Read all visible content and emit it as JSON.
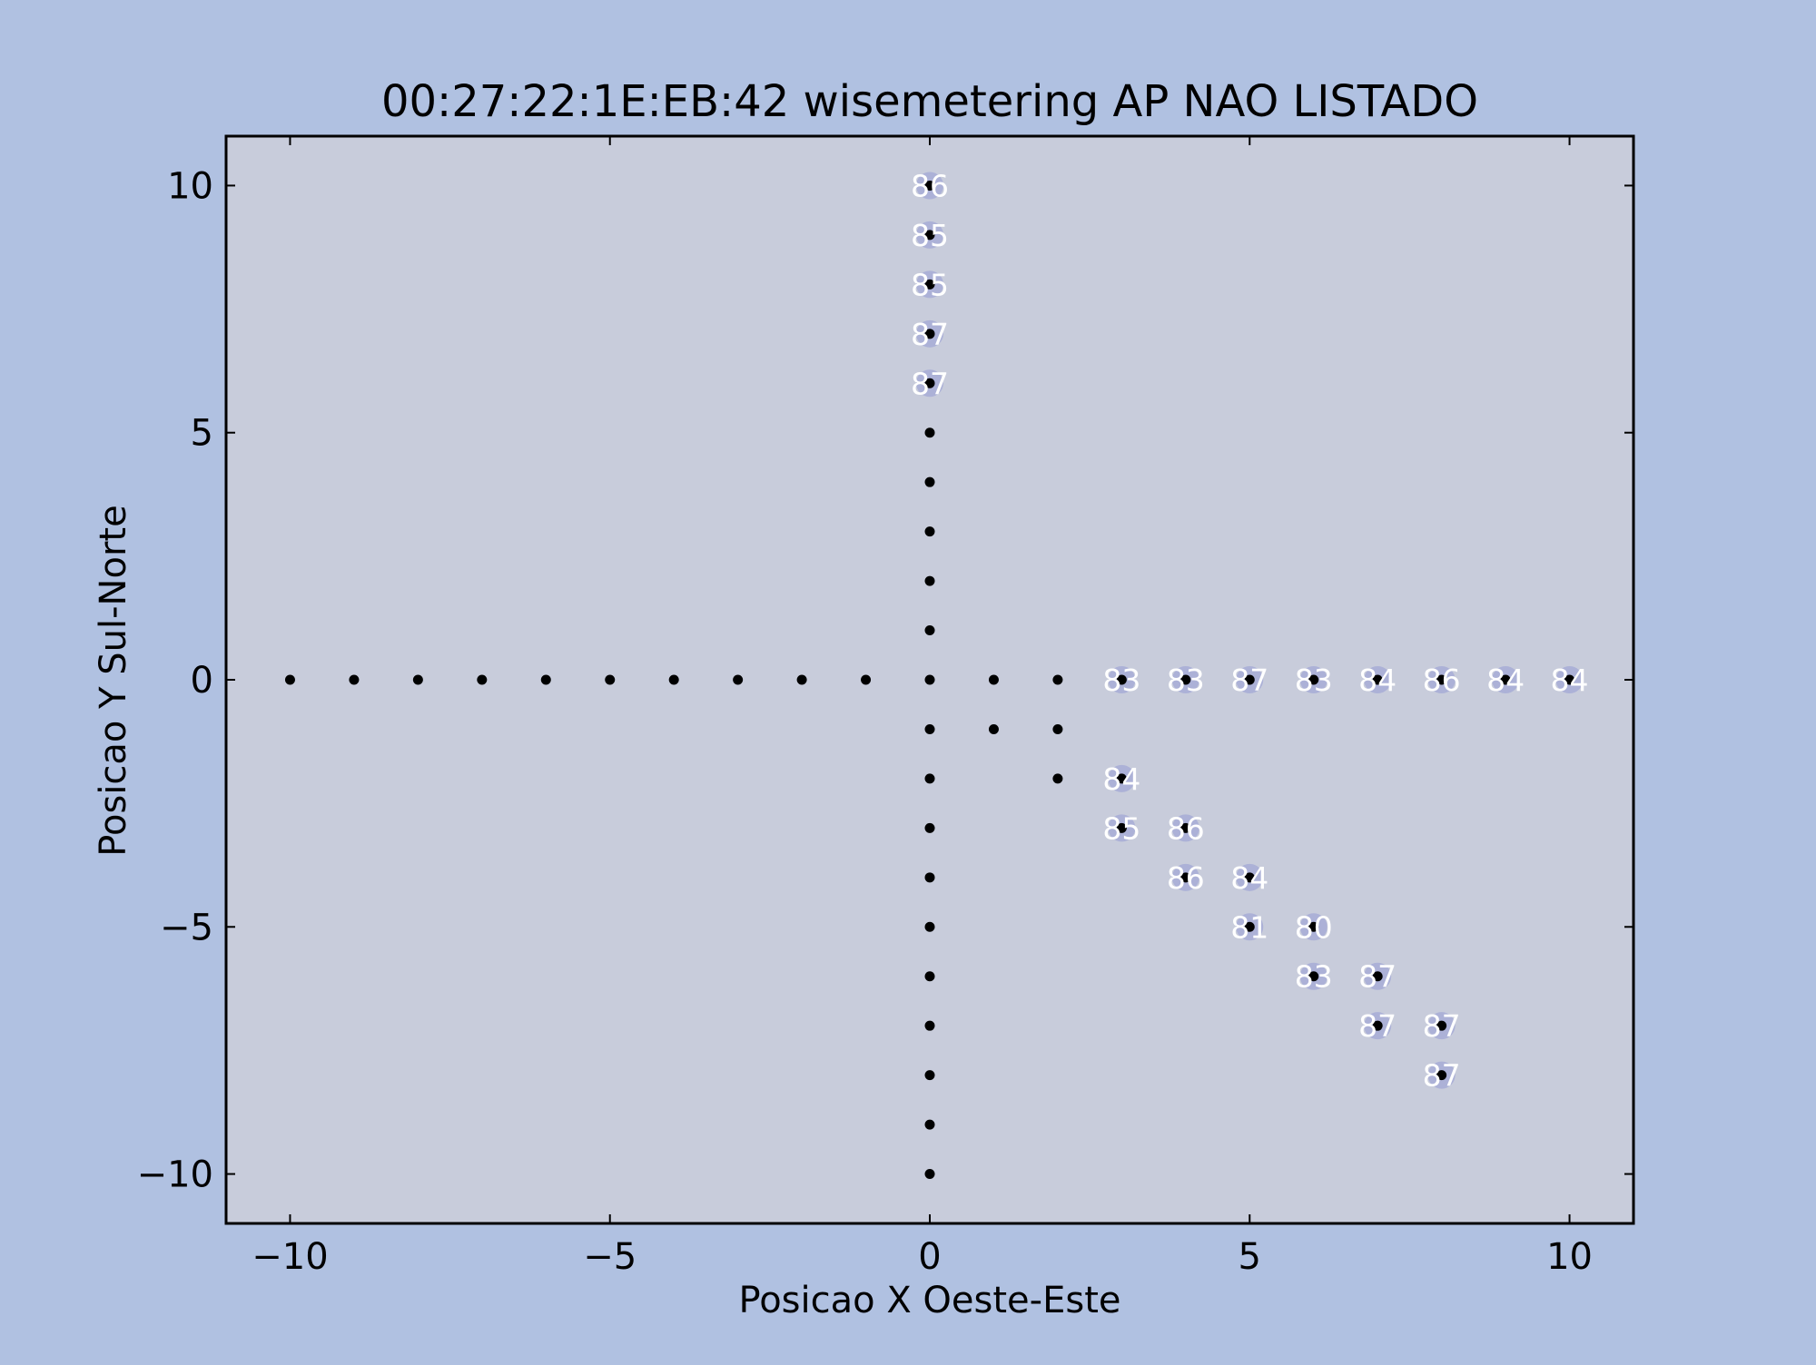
{
  "chart_data": {
    "type": "scatter",
    "title": "00:27:22:1E:EB:42 wisemetering AP NAO LISTADO",
    "xlabel": "Posicao X Oeste-Este",
    "ylabel": "Posicao Y Sul-Norte",
    "xlim": [
      -11,
      11
    ],
    "ylim": [
      -11,
      11
    ],
    "xticks": [
      -10,
      -5,
      0,
      5,
      10
    ],
    "xtick_labels": [
      "−10",
      "−5",
      "0",
      "5",
      "10"
    ],
    "yticks": [
      -10,
      -5,
      0,
      5,
      10
    ],
    "ytick_labels": [
      "−10",
      "−5",
      "0",
      "5",
      "10"
    ],
    "grid": false,
    "legend": "none",
    "colors": {
      "figure_background": "#b0c1e1",
      "plot_background": "#c8ccdb",
      "marker": "#000000",
      "label_halo": "#a9aed6",
      "label_text": "#ffffff",
      "axis": "#000000"
    },
    "points": [
      {
        "x": -10,
        "y": 0
      },
      {
        "x": -9,
        "y": 0
      },
      {
        "x": -8,
        "y": 0
      },
      {
        "x": -7,
        "y": 0
      },
      {
        "x": -6,
        "y": 0
      },
      {
        "x": -5,
        "y": 0
      },
      {
        "x": -4,
        "y": 0
      },
      {
        "x": -3,
        "y": 0
      },
      {
        "x": -2,
        "y": 0
      },
      {
        "x": -1,
        "y": 0
      },
      {
        "x": 0,
        "y": 0
      },
      {
        "x": 1,
        "y": 0
      },
      {
        "x": 2,
        "y": 0
      },
      {
        "x": 3,
        "y": 0,
        "label": "83"
      },
      {
        "x": 4,
        "y": 0,
        "label": "83"
      },
      {
        "x": 5,
        "y": 0,
        "label": "87"
      },
      {
        "x": 6,
        "y": 0,
        "label": "83"
      },
      {
        "x": 7,
        "y": 0,
        "label": "84"
      },
      {
        "x": 8,
        "y": 0,
        "label": "86"
      },
      {
        "x": 9,
        "y": 0,
        "label": "84"
      },
      {
        "x": 10,
        "y": 0,
        "label": "84"
      },
      {
        "x": 0,
        "y": 10,
        "label": "86"
      },
      {
        "x": 0,
        "y": 9,
        "label": "85"
      },
      {
        "x": 0,
        "y": 8,
        "label": "85"
      },
      {
        "x": 0,
        "y": 7,
        "label": "87"
      },
      {
        "x": 0,
        "y": 6,
        "label": "87"
      },
      {
        "x": 0,
        "y": 5
      },
      {
        "x": 0,
        "y": 4
      },
      {
        "x": 0,
        "y": 3
      },
      {
        "x": 0,
        "y": 2
      },
      {
        "x": 0,
        "y": 1
      },
      {
        "x": 0,
        "y": -1
      },
      {
        "x": 0,
        "y": -2
      },
      {
        "x": 0,
        "y": -3
      },
      {
        "x": 0,
        "y": -4
      },
      {
        "x": 0,
        "y": -5
      },
      {
        "x": 0,
        "y": -6
      },
      {
        "x": 0,
        "y": -7
      },
      {
        "x": 0,
        "y": -8
      },
      {
        "x": 0,
        "y": -9
      },
      {
        "x": 0,
        "y": -10
      },
      {
        "x": 1,
        "y": -1
      },
      {
        "x": 2,
        "y": -1
      },
      {
        "x": 2,
        "y": -2
      },
      {
        "x": 3,
        "y": -2,
        "label": "84"
      },
      {
        "x": 3,
        "y": -3,
        "label": "85"
      },
      {
        "x": 4,
        "y": -3,
        "label": "86"
      },
      {
        "x": 4,
        "y": -4,
        "label": "86"
      },
      {
        "x": 5,
        "y": -4,
        "label": "84"
      },
      {
        "x": 5,
        "y": -5,
        "label": "81"
      },
      {
        "x": 6,
        "y": -5,
        "label": "80"
      },
      {
        "x": 6,
        "y": -6,
        "label": "83"
      },
      {
        "x": 7,
        "y": -6,
        "label": "87"
      },
      {
        "x": 7,
        "y": -7,
        "label": "87"
      },
      {
        "x": 8,
        "y": -7,
        "label": "87"
      },
      {
        "x": 8,
        "y": -8,
        "label": "87"
      }
    ]
  }
}
